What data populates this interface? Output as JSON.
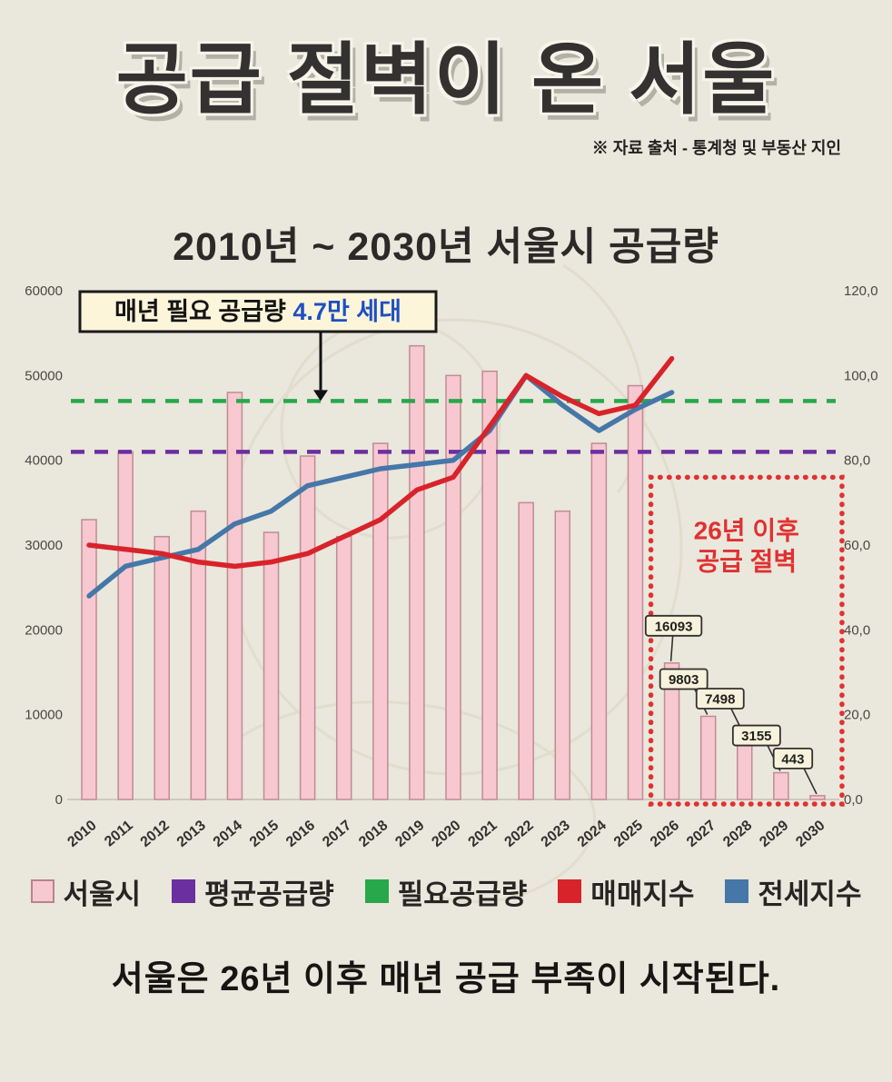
{
  "page": {
    "title": "공급 절벽이 온 서울",
    "source": "※ 자료 출처 - 통계청 및 부동산 지인",
    "subtitle": "2010년 ~ 2030년  서울시 공급량",
    "footer": "서울은 26년 이후 매년 공급 부족이 시작된다."
  },
  "annotation": {
    "label_prefix": "매년 필요 공급량 ",
    "label_highlight": "4.7만 세대",
    "highlight_color": "#1f4fc0",
    "box_bg": "#fcf5da",
    "box_border": "#1a1a1a"
  },
  "legend": {
    "items": [
      {
        "label": "서울시",
        "color": "#f8c8d0",
        "border": "#b9838e"
      },
      {
        "label": "평균공급량",
        "color": "#6b2fa0"
      },
      {
        "label": "필요공급량",
        "color": "#27a84a"
      },
      {
        "label": "매매지수",
        "color": "#d8232a"
      },
      {
        "label": "전세지수",
        "color": "#4577a8"
      }
    ]
  },
  "chart_data": {
    "type": "bar",
    "title": "2010년 ~ 2030년 서울시 공급량",
    "categories": [
      "2010",
      "2011",
      "2012",
      "2013",
      "2014",
      "2015",
      "2016",
      "2017",
      "2018",
      "2019",
      "2020",
      "2021",
      "2022",
      "2023",
      "2024",
      "2025",
      "2026",
      "2027",
      "2028",
      "2029",
      "2030"
    ],
    "bar_series": {
      "name": "서울시",
      "axis": "left",
      "values": [
        33000,
        41000,
        31000,
        34000,
        48000,
        31500,
        40500,
        31000,
        42000,
        53500,
        50000,
        50500,
        35000,
        34000,
        42000,
        48800,
        16093,
        9803,
        7498,
        3155,
        443
      ]
    },
    "ref_lines": [
      {
        "name": "평균공급량",
        "value": 41000,
        "color": "#6b2fa0"
      },
      {
        "name": "필요공급량",
        "value": 47000,
        "color": "#27a84a"
      }
    ],
    "line_series": [
      {
        "name": "전세지수",
        "axis": "right",
        "start_category": "2010",
        "color": "#4577a8",
        "values": [
          48,
          55,
          57,
          59,
          65,
          68,
          74,
          76,
          78,
          79,
          80,
          87,
          100,
          93,
          87,
          92,
          96
        ]
      },
      {
        "name": "매매지수",
        "axis": "right",
        "start_category": "2010",
        "color": "#d8232a",
        "values": [
          60,
          59,
          58,
          56,
          55,
          56,
          58,
          62,
          66,
          73,
          76,
          88,
          100,
          95,
          91,
          93,
          104
        ]
      }
    ],
    "bar_callouts": [
      {
        "category": "2026",
        "label": "16093"
      },
      {
        "category": "2027",
        "label": "9803"
      },
      {
        "category": "2028",
        "label": "7498"
      },
      {
        "category": "2029",
        "label": "3155"
      },
      {
        "category": "2030",
        "label": "443"
      }
    ],
    "cliff_box": {
      "from": "2026",
      "to": "2030",
      "top_value": 38000,
      "line1": "26년 이후",
      "line2": "공급 절벽",
      "color": "#e03131"
    },
    "left_axis": {
      "max": 60000,
      "ticks": [
        "0",
        "10000",
        "20000",
        "30000",
        "40000",
        "50000",
        "60000"
      ]
    },
    "right_axis": {
      "max": 120,
      "ticks": [
        "0,0",
        "20,0",
        "40,0",
        "60,0",
        "80,0",
        "100,0",
        "120,0"
      ]
    },
    "colors": {
      "bar_fill": "#f8c8d0",
      "bar_border": "#c08b95",
      "callout_bg": "#f7f2dc",
      "callout_border": "#33312e",
      "axis_text": "#4a4843",
      "tick_text": "#33312e"
    }
  }
}
